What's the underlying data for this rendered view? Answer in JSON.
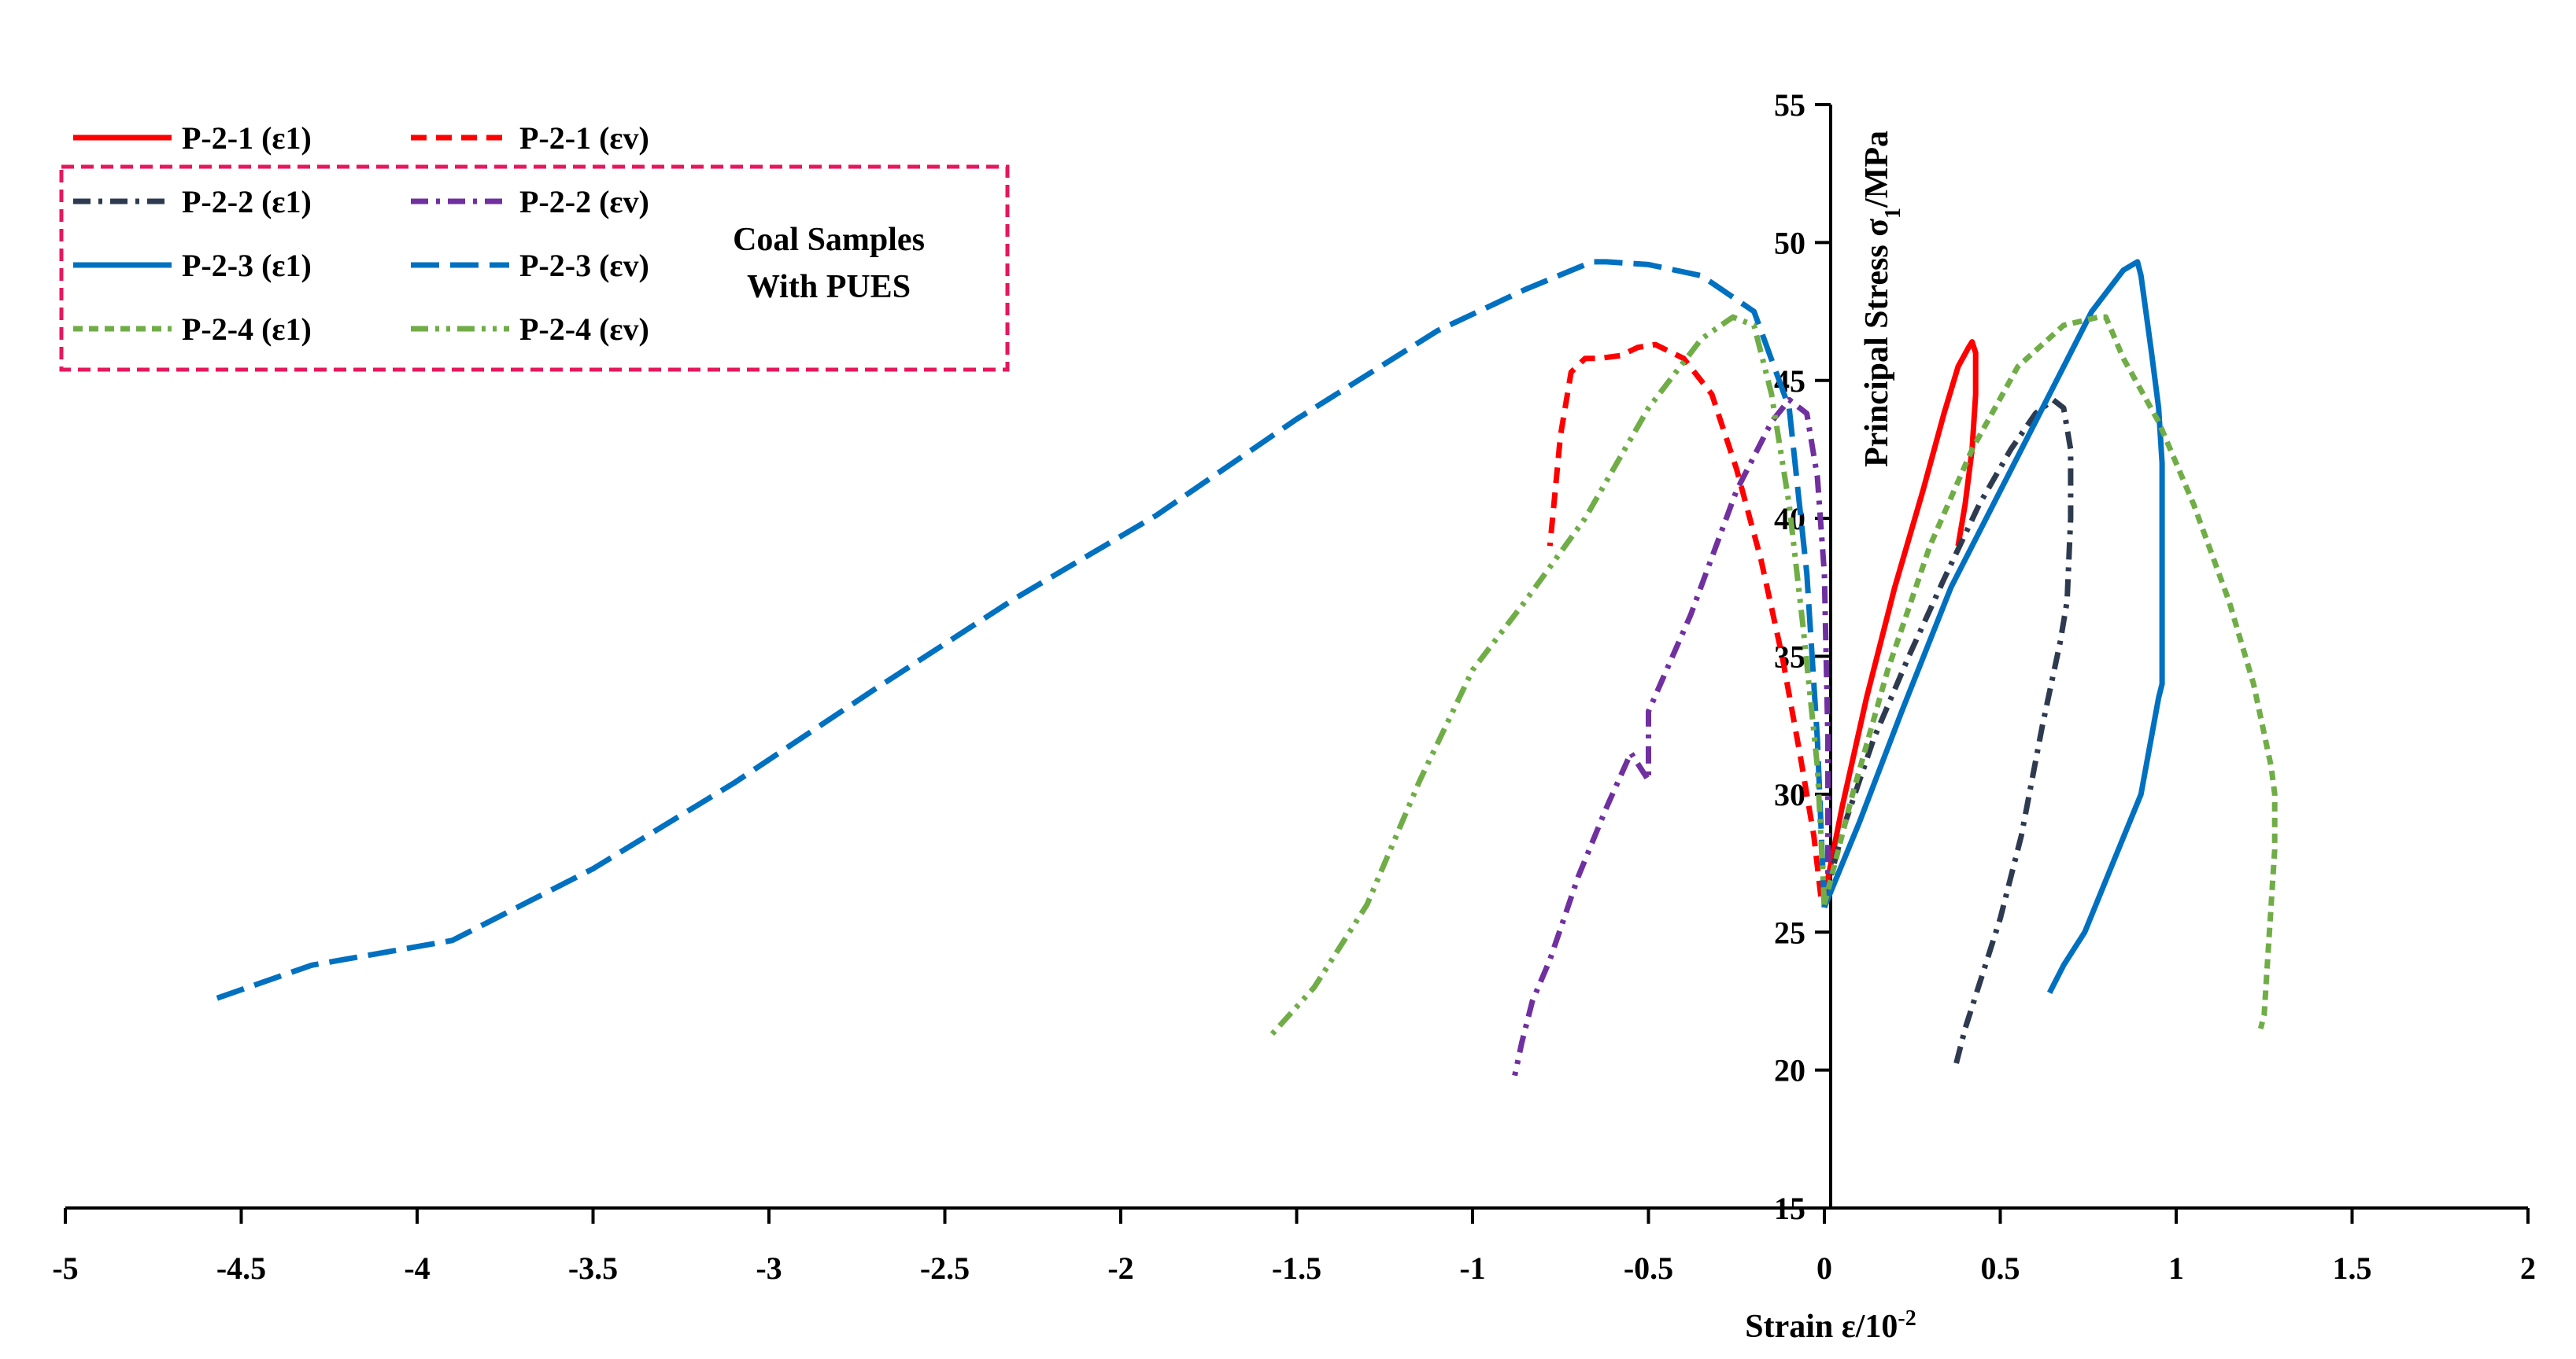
{
  "chart_data": {
    "type": "line",
    "title": "",
    "xlabel": "Strain ε/10",
    "xlabel_sup": "-2",
    "ylabel": "Principal  Stress σ",
    "ylabel_sub": "1",
    "ylabel_unit": "/MPa",
    "xlim": [
      -5,
      2
    ],
    "ylim": [
      15,
      55
    ],
    "x_ticks": [
      -5,
      -4.5,
      -4,
      -3.5,
      -3,
      -2.5,
      -2,
      -1.5,
      -1,
      -0.5,
      0,
      0.5,
      1,
      1.5,
      2
    ],
    "x_tick_labels": [
      "-5",
      "-4.5",
      "-4",
      "-3.5",
      "-3",
      "-2.5",
      "-2",
      "-1.5",
      "-1",
      "-0.5",
      "0",
      "0.5",
      "1",
      "1.5",
      "2"
    ],
    "y_ticks": [
      15,
      20,
      25,
      30,
      35,
      40,
      45,
      50,
      55
    ],
    "y_tick_labels": [
      "15",
      "20",
      "25",
      "30",
      "35",
      "40",
      "45",
      "50",
      "55"
    ],
    "grid": false,
    "legend_position": "top-left",
    "annotation": [
      "Coal Samples",
      "With  PUES"
    ],
    "series": [
      {
        "name": "P-2-1 (ε1)",
        "color": "#ff0000",
        "dash": "solid",
        "x": [
          0.0,
          0.05,
          0.12,
          0.2,
          0.28,
          0.34,
          0.38,
          0.41,
          0.42,
          0.43,
          0.43,
          0.42,
          0.4,
          0.38
        ],
        "y": [
          26.3,
          29.5,
          33.5,
          37.5,
          41.0,
          43.8,
          45.5,
          46.2,
          46.4,
          46.0,
          44.5,
          42.5,
          40.5,
          39.0
        ]
      },
      {
        "name": "P-2-1 (εv)",
        "color": "#ff0000",
        "dash": "dash",
        "x": [
          -0.01,
          -0.03,
          -0.07,
          -0.12,
          -0.18,
          -0.25,
          -0.32,
          -0.4,
          -0.48,
          -0.53,
          -0.58,
          -0.64,
          -0.68,
          -0.72,
          -0.75,
          -0.78
        ],
        "y": [
          26.3,
          28.5,
          31.5,
          35.0,
          38.5,
          41.8,
          44.5,
          45.8,
          46.3,
          46.2,
          45.9,
          45.8,
          45.8,
          45.3,
          43.0,
          39.0
        ]
      },
      {
        "name": "P-2-2 (ε1)",
        "color": "#2e3a4f",
        "dash": "dashdot",
        "x": [
          0.0,
          0.06,
          0.14,
          0.24,
          0.34,
          0.44,
          0.53,
          0.6,
          0.65,
          0.68,
          0.7,
          0.7,
          0.69,
          0.67,
          0.62,
          0.56,
          0.5,
          0.45,
          0.4,
          0.37
        ],
        "y": [
          26.2,
          29.0,
          32.0,
          35.0,
          37.8,
          40.5,
          42.5,
          43.8,
          44.3,
          44.0,
          42.5,
          40.0,
          37.0,
          35.5,
          32.5,
          28.5,
          25.5,
          23.5,
          21.5,
          20.0
        ]
      },
      {
        "name": "P-2-2 (εv)",
        "color": "#7030a0",
        "dash": "dashdot",
        "x": [
          0.01,
          0.01,
          0.0,
          -0.02,
          -0.05,
          -0.1,
          -0.15,
          -0.25,
          -0.38,
          -0.5,
          -0.5,
          -0.55,
          -0.62,
          -0.7,
          -0.78,
          -0.83,
          -0.86,
          -0.88
        ],
        "y": [
          26.2,
          32.0,
          38.0,
          41.5,
          43.8,
          44.3,
          43.5,
          41.0,
          36.5,
          33.0,
          30.5,
          31.5,
          29.5,
          27.0,
          24.0,
          22.5,
          21.0,
          19.8
        ]
      },
      {
        "name": "P-2-3 (ε1)",
        "color": "#0070c0",
        "dash": "solid",
        "x": [
          0.0,
          0.1,
          0.22,
          0.36,
          0.5,
          0.64,
          0.76,
          0.85,
          0.89,
          0.9,
          0.93,
          0.95,
          0.96,
          0.96,
          0.96,
          0.95,
          0.9,
          0.82,
          0.74,
          0.68,
          0.64
        ],
        "y": [
          25.9,
          29.0,
          33.0,
          37.5,
          41.0,
          44.5,
          47.5,
          49.0,
          49.3,
          48.8,
          46.0,
          44.0,
          42.0,
          36.0,
          34.0,
          33.5,
          30.0,
          27.5,
          25.0,
          23.8,
          22.8
        ]
      },
      {
        "name": "P-2-3 (εv)",
        "color": "#0070c0",
        "dash": "longdash",
        "x": [
          0.0,
          -0.02,
          -0.05,
          -0.1,
          -0.2,
          -0.35,
          -0.5,
          -0.62,
          -0.66,
          -0.85,
          -1.1,
          -1.5,
          -1.9,
          -2.3,
          -2.7,
          -3.1,
          -3.5,
          -3.9,
          -4.3,
          -4.57
        ],
        "y": [
          25.9,
          32.0,
          38.0,
          44.0,
          47.5,
          48.8,
          49.2,
          49.3,
          49.3,
          48.3,
          46.8,
          43.6,
          40.1,
          37.1,
          33.8,
          30.4,
          27.3,
          24.7,
          23.8,
          22.6
        ]
      },
      {
        "name": "P-2-4 (ε1)",
        "color": "#70ad47",
        "dash": "shortdash",
        "x": [
          0.0,
          0.08,
          0.18,
          0.3,
          0.42,
          0.55,
          0.68,
          0.78,
          0.8,
          0.85,
          0.95,
          1.05,
          1.15,
          1.22,
          1.27,
          1.28,
          1.28,
          1.26,
          1.25,
          1.24
        ],
        "y": [
          26.0,
          30.0,
          34.5,
          39.0,
          42.5,
          45.5,
          47.0,
          47.3,
          47.3,
          45.8,
          43.5,
          40.5,
          37.0,
          34.0,
          31.0,
          30.0,
          28.0,
          24.0,
          22.0,
          21.5
        ]
      },
      {
        "name": "P-2-4 (εv)",
        "color": "#70ad47",
        "dash": "dashdotdot",
        "x": [
          0.0,
          -0.02,
          -0.06,
          -0.1,
          -0.15,
          -0.2,
          -0.26,
          -0.35,
          -0.5,
          -0.68,
          -0.85,
          -1.0,
          -1.15,
          -1.3,
          -1.45,
          -1.57
        ],
        "y": [
          26.0,
          31.0,
          36.0,
          40.5,
          44.5,
          47.0,
          47.3,
          46.5,
          44.0,
          40.0,
          37.0,
          34.5,
          30.5,
          26.0,
          23.0,
          21.3
        ]
      }
    ]
  }
}
